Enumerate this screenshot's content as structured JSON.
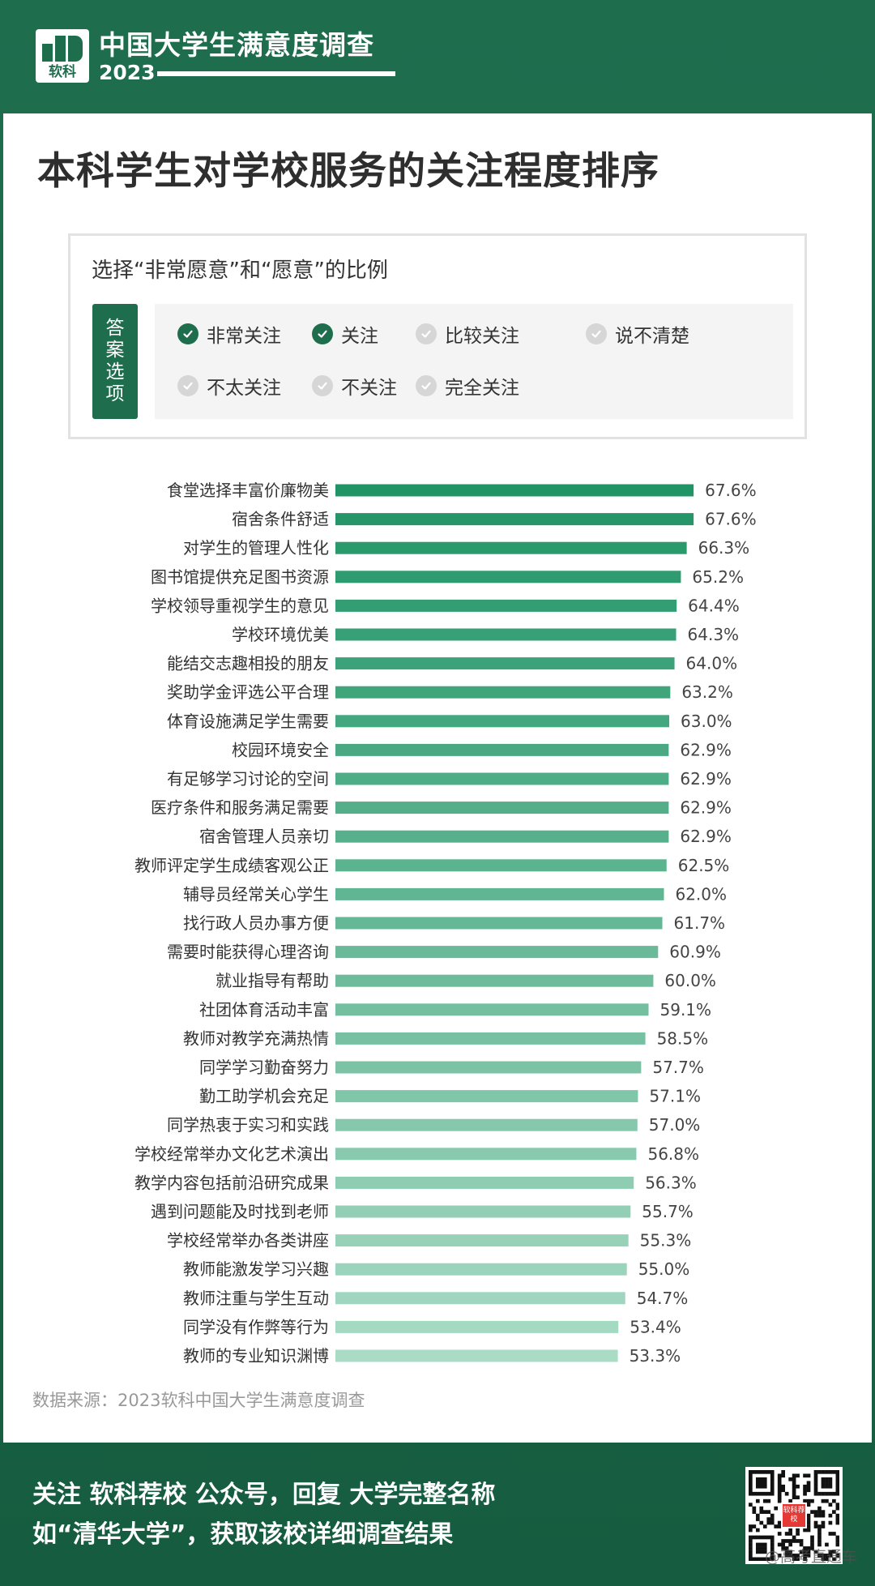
{
  "header": {
    "logo_text": "软科",
    "brand_title": "中国大学生满意度调查",
    "brand_year": "2023"
  },
  "main_title": "本科学生对学校服务的关注程度排序",
  "legend": {
    "title": "选择“非常愿意”和“愿意”的比例",
    "answer_tag": [
      "答",
      "案",
      "选",
      "项"
    ],
    "options": [
      {
        "label": "非常关注",
        "checked": true
      },
      {
        "label": "关注",
        "checked": true
      },
      {
        "label": "比较关注",
        "checked": false
      },
      {
        "label": "说不清楚",
        "checked": false
      },
      {
        "label": "不太关注",
        "checked": false
      },
      {
        "label": "不关注",
        "checked": false
      },
      {
        "label": "完全关注",
        "checked": false
      }
    ]
  },
  "chart_data": {
    "type": "bar",
    "orientation": "horizontal",
    "categories": [
      "食堂选择丰富价廉物美",
      "宿舍条件舒适",
      "对学生的管理人性化",
      "图书馆提供充足图书资源",
      "学校领导重视学生的意见",
      "学校环境优美",
      "能结交志趣相投的朋友",
      "奖助学金评选公平合理",
      "体育设施满足学生需要",
      "校园环境安全",
      "有足够学习讨论的空间",
      "医疗条件和服务满足需要",
      "宿舍管理人员亲切",
      "教师评定学生成绩客观公正",
      "辅导员经常关心学生",
      "找行政人员办事方便",
      "需要时能获得心理咨询",
      "就业指导有帮助",
      "社团体育活动丰富",
      "教师对教学充满热情",
      "同学学习勤奋努力",
      "勤工助学机会充足",
      "同学热衷于实习和实践",
      "学校经常举办文化艺术演出",
      "教学内容包括前沿研究成果",
      "遇到问题能及时找到老师",
      "学校经常举办各类讲座",
      "教师能激发学习兴趣",
      "教师注重与学生互动",
      "同学没有作弊等行为",
      "教师的专业知识渊博"
    ],
    "values": [
      67.6,
      67.6,
      66.3,
      65.2,
      64.4,
      64.3,
      64.0,
      63.2,
      63.0,
      62.9,
      62.9,
      62.9,
      62.9,
      62.5,
      62.0,
      61.7,
      60.9,
      60.0,
      59.1,
      58.5,
      57.7,
      57.1,
      57.0,
      56.8,
      56.3,
      55.7,
      55.3,
      55.0,
      54.7,
      53.4,
      53.3
    ],
    "value_labels": [
      "67.6%",
      "67.6%",
      "66.3%",
      "65.2%",
      "64.4%",
      "64.3%",
      "64.0%",
      "63.2%",
      "63.0%",
      "62.9%",
      "62.9%",
      "62.9%",
      "62.9%",
      "62.5%",
      "62.0%",
      "61.7%",
      "60.9%",
      "60.0%",
      "59.1%",
      "58.5%",
      "57.7%",
      "57.1%",
      "57.0%",
      "56.8%",
      "56.3%",
      "55.7%",
      "55.3%",
      "55.0%",
      "54.7%",
      "53.4%",
      "53.3%"
    ],
    "unit": "%",
    "color_start": "#219466",
    "color_end": "#a9dbc5"
  },
  "source": "数据来源：2023软科中国大学生满意度调查",
  "footer": {
    "line1": "关注 软科荐校 公众号，回复 大学完整名称",
    "line2": "如“清华大学”，获取该校详细调查结果",
    "qr_center": "软科荐校",
    "watermark": "@高考直通车"
  },
  "colors": {
    "brand_green": "#1e6e4e",
    "card_bg": "#ffffff",
    "check_off": "#d6d6d6"
  }
}
